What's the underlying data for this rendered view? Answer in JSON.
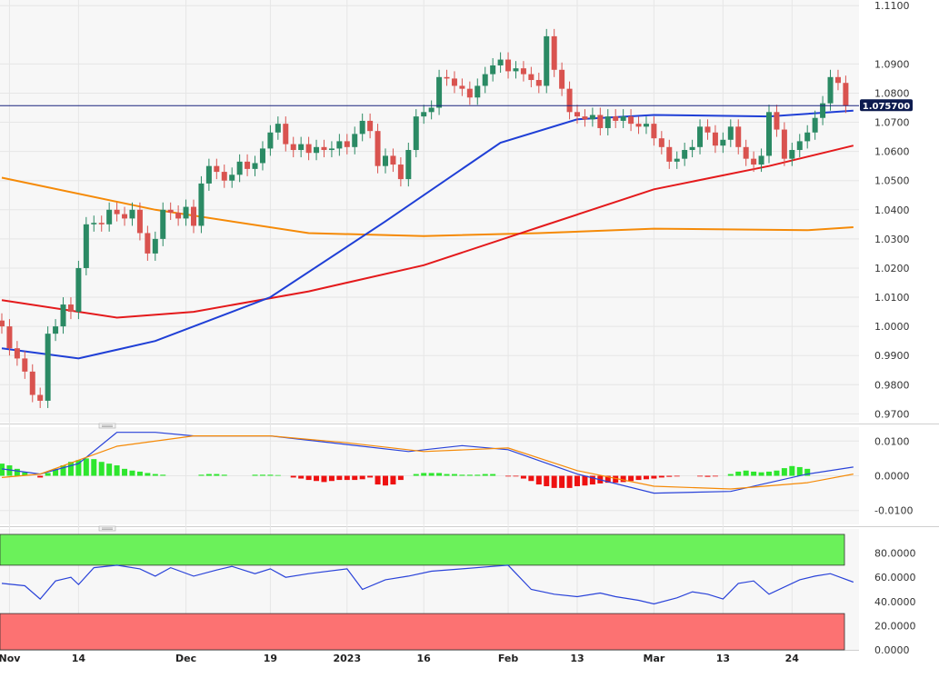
{
  "chart_data": {
    "type": "candlestick",
    "instrument": "",
    "current_price_label": "1.075700",
    "current_price": 1.0757,
    "x_axis": {
      "tick_labels": [
        "Nov",
        "14",
        "Dec",
        "19",
        "2023",
        "16",
        "Feb",
        "13",
        "Mar",
        "13",
        "24"
      ],
      "tick_positions": [
        1,
        10,
        24,
        35,
        45,
        55,
        66,
        75,
        85,
        94,
        103
      ]
    },
    "price_panel": {
      "ylim": [
        0.967,
        1.111
      ],
      "y_ticks": [
        "1.1100",
        "1.0900",
        "1.0800",
        "1.0700",
        "1.0600",
        "1.0500",
        "1.0400",
        "1.0300",
        "1.0200",
        "1.0100",
        "1.0000",
        "0.9900",
        "0.9800",
        "0.9700"
      ],
      "y_tick_values": [
        1.11,
        1.09,
        1.08,
        1.07,
        1.06,
        1.05,
        1.04,
        1.03,
        1.02,
        1.01,
        1.0,
        0.99,
        0.98,
        0.97
      ],
      "candles_close": [
        1.0,
        0.9925,
        0.989,
        0.9845,
        0.9765,
        0.9745,
        0.9975,
        1.0,
        1.0075,
        1.005,
        1.02,
        1.035,
        1.0355,
        1.035,
        1.04,
        1.0385,
        1.037,
        1.04,
        1.032,
        1.025,
        1.03,
        1.04,
        1.039,
        1.037,
        1.041,
        1.0345,
        1.049,
        1.055,
        1.053,
        1.05,
        1.052,
        1.0565,
        1.054,
        1.056,
        1.061,
        1.0665,
        1.0695,
        1.0625,
        1.0605,
        1.0625,
        1.0595,
        1.0615,
        1.0605,
        1.061,
        1.0635,
        1.0615,
        1.066,
        1.0705,
        1.067,
        1.055,
        1.0585,
        1.0555,
        1.0505,
        1.0605,
        1.072,
        1.0735,
        1.075,
        1.0855,
        1.085,
        1.0825,
        1.0815,
        1.0785,
        1.0825,
        1.0865,
        1.0895,
        1.0915,
        1.0875,
        1.0885,
        1.0865,
        1.0845,
        1.0825,
        1.0995,
        1.088,
        1.0815,
        1.0735,
        1.072,
        1.071,
        1.0725,
        1.068,
        1.072,
        1.0705,
        1.072,
        1.0695,
        1.0685,
        1.0695,
        1.0645,
        1.0615,
        1.0565,
        1.0575,
        1.0605,
        1.0615,
        1.0685,
        1.0665,
        1.062,
        1.064,
        1.0685,
        1.0615,
        1.0575,
        1.0555,
        1.0585,
        1.0735,
        1.0675,
        1.0575,
        1.0605,
        1.0635,
        1.0665,
        1.0715,
        1.0765,
        1.0855,
        1.0835,
        1.0757
      ],
      "series": [
        {
          "name": "",
          "color": "#f58a07",
          "points": [
            [
              0,
              1.051
            ],
            [
              20,
              1.04
            ],
            [
              40,
              1.032
            ],
            [
              55,
              1.031
            ],
            [
              70,
              1.032
            ],
            [
              85,
              1.0335
            ],
            [
              105,
              1.033
            ],
            [
              111,
              1.034
            ]
          ]
        },
        {
          "name": "",
          "color": "#e41a1c",
          "points": [
            [
              0,
              1.009
            ],
            [
              15,
              1.003
            ],
            [
              25,
              1.005
            ],
            [
              40,
              1.012
            ],
            [
              55,
              1.021
            ],
            [
              70,
              1.034
            ],
            [
              85,
              1.047
            ],
            [
              100,
              1.055
            ],
            [
              111,
              1.062
            ]
          ]
        },
        {
          "name": "",
          "color": "#1f3fd6",
          "points": [
            [
              0,
              0.9925
            ],
            [
              10,
              0.989
            ],
            [
              20,
              0.995
            ],
            [
              35,
              1.01
            ],
            [
              50,
              1.036
            ],
            [
              65,
              1.063
            ],
            [
              75,
              1.071
            ],
            [
              85,
              1.0725
            ],
            [
              100,
              1.072
            ],
            [
              111,
              1.074
            ]
          ]
        }
      ]
    },
    "macd_panel": {
      "ylim": [
        -0.014,
        0.014
      ],
      "y_ticks": [
        "0.0100",
        "0.0000",
        "-0.0100"
      ],
      "y_tick_values": [
        0.01,
        0.0,
        -0.01
      ],
      "macd_points": [
        [
          0,
          0.002
        ],
        [
          5,
          0.0005
        ],
        [
          10,
          0.0035
        ],
        [
          15,
          0.0125
        ],
        [
          20,
          0.0125
        ],
        [
          25,
          0.0115
        ],
        [
          35,
          0.0115
        ],
        [
          45,
          0.009
        ],
        [
          53,
          0.007
        ],
        [
          60,
          0.0087
        ],
        [
          66,
          0.0075
        ],
        [
          75,
          0.0005
        ],
        [
          85,
          -0.005
        ],
        [
          95,
          -0.0045
        ],
        [
          105,
          0.0005
        ],
        [
          111,
          0.0025
        ]
      ],
      "signal_points": [
        [
          0,
          -0.0005
        ],
        [
          5,
          0.0005
        ],
        [
          15,
          0.0085
        ],
        [
          25,
          0.0115
        ],
        [
          35,
          0.0115
        ],
        [
          45,
          0.0095
        ],
        [
          55,
          0.007
        ],
        [
          66,
          0.008
        ],
        [
          75,
          0.0015
        ],
        [
          85,
          -0.003
        ],
        [
          95,
          -0.0038
        ],
        [
          105,
          -0.002
        ],
        [
          111,
          0.0005
        ]
      ],
      "histogram": [
        0.0035,
        0.003,
        0.002,
        0.001,
        0.0,
        -0.0005,
        0.0008,
        0.002,
        0.003,
        0.004,
        0.0045,
        0.005,
        0.0048,
        0.004,
        0.0035,
        0.003,
        0.002,
        0.0015,
        0.0012,
        0.0008,
        0.0005,
        0.0003,
        0.0,
        0.0,
        0.0,
        0.0,
        0.0003,
        0.0005,
        0.0005,
        0.0003,
        0.0,
        0.0,
        0.0,
        0.0003,
        0.0003,
        0.0003,
        0.0002,
        0.0,
        -0.0005,
        -0.0008,
        -0.0012,
        -0.0015,
        -0.0018,
        -0.0015,
        -0.0012,
        -0.0012,
        -0.0012,
        -0.001,
        -0.0005,
        -0.0025,
        -0.0028,
        -0.0025,
        -0.0012,
        0.0,
        0.0005,
        0.0008,
        0.0008,
        0.0008,
        0.0005,
        0.0005,
        0.0003,
        0.0003,
        0.0003,
        0.0005,
        0.0005,
        0.0,
        -0.0002,
        -0.0002,
        -0.0008,
        -0.0015,
        -0.0025,
        -0.003,
        -0.0035,
        -0.0035,
        -0.0035,
        -0.003,
        -0.0028,
        -0.0025,
        -0.0022,
        -0.002,
        -0.002,
        -0.0018,
        -0.0015,
        -0.0012,
        -0.001,
        -0.0008,
        -0.0005,
        -0.0003,
        -0.0002,
        0.0,
        0.0,
        -0.0002,
        -0.0003,
        -0.0002,
        0.0,
        0.0005,
        0.0012,
        0.0015,
        0.0012,
        0.001,
        0.0012,
        0.0015,
        0.0022,
        0.0028,
        0.0025,
        0.002,
        0.0,
        0.0,
        0.0,
        0.0
      ]
    },
    "rsi_panel": {
      "ylim": [
        0,
        100
      ],
      "y_ticks": [
        "80.0000",
        "60.0000",
        "40.0000",
        "20.0000",
        "0.0000"
      ],
      "y_tick_values": [
        80,
        60,
        40,
        20,
        0
      ],
      "overbought_level": 70,
      "oversold_level": 30,
      "overbought_color": "#6bf15a",
      "oversold_color": "#fc7272",
      "rsi_points": [
        [
          0,
          55
        ],
        [
          3,
          53
        ],
        [
          5,
          42
        ],
        [
          7,
          57
        ],
        [
          9,
          60
        ],
        [
          10,
          54
        ],
        [
          12,
          68
        ],
        [
          15,
          70
        ],
        [
          18,
          67
        ],
        [
          20,
          61
        ],
        [
          22,
          68
        ],
        [
          25,
          61
        ],
        [
          28,
          66
        ],
        [
          30,
          69
        ],
        [
          33,
          63
        ],
        [
          35,
          67
        ],
        [
          37,
          60
        ],
        [
          40,
          63
        ],
        [
          45,
          67
        ],
        [
          47,
          50
        ],
        [
          50,
          58
        ],
        [
          53,
          61
        ],
        [
          56,
          65
        ],
        [
          60,
          67
        ],
        [
          64,
          69
        ],
        [
          66,
          70
        ],
        [
          69,
          50
        ],
        [
          72,
          46
        ],
        [
          75,
          44
        ],
        [
          78,
          47
        ],
        [
          80,
          44
        ],
        [
          83,
          41
        ],
        [
          85,
          38
        ],
        [
          88,
          43
        ],
        [
          90,
          48
        ],
        [
          92,
          46
        ],
        [
          94,
          42
        ],
        [
          96,
          55
        ],
        [
          98,
          57
        ],
        [
          100,
          46
        ],
        [
          104,
          58
        ],
        [
          106,
          61
        ],
        [
          108,
          63
        ],
        [
          111,
          56
        ]
      ]
    }
  }
}
